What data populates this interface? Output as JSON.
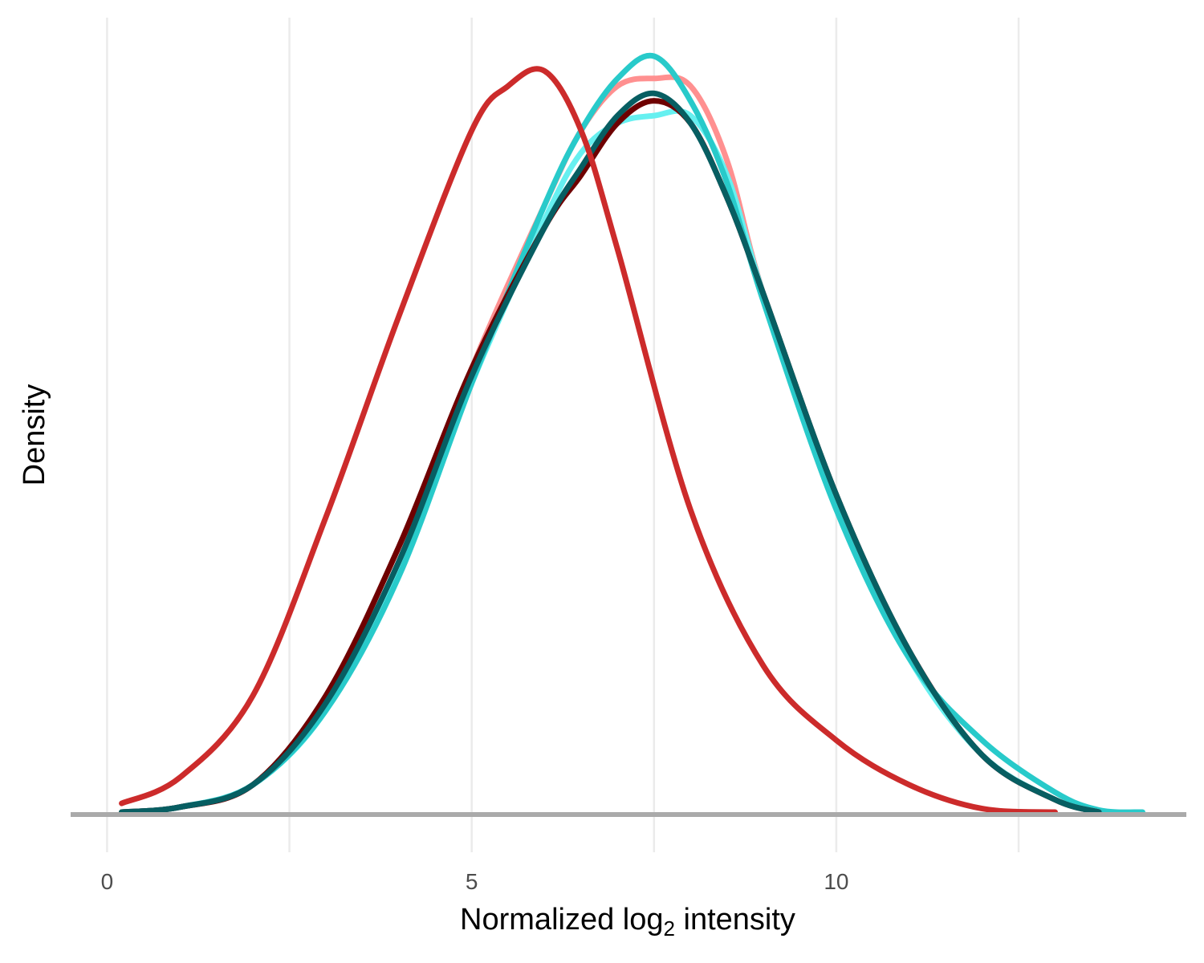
{
  "chart_data": {
    "type": "line",
    "xlabel_main": "Normalized log",
    "xlabel_sub": "2",
    "xlabel_tail": " intensity",
    "ylabel": "Density",
    "xlim": [
      -0.5,
      14.8
    ],
    "ylim": [
      0,
      1.0
    ],
    "x_ticks": [
      {
        "value": 0,
        "label": "0"
      },
      {
        "value": 5,
        "label": "5"
      },
      {
        "value": 10,
        "label": "10"
      }
    ],
    "x_minor_grid": [
      2.5,
      7.5,
      12.5
    ],
    "grid": "vertical-only",
    "legend": "none",
    "series": [
      {
        "color": "#ff9090",
        "x": [
          0.2,
          1,
          2,
          3,
          4,
          5,
          6,
          6.5,
          7,
          7.5,
          8,
          8.5,
          9,
          10,
          11,
          12,
          13,
          13.6
        ],
        "y": [
          0.003,
          0.01,
          0.04,
          0.15,
          0.34,
          0.6,
          0.82,
          0.92,
          0.98,
          0.99,
          0.98,
          0.88,
          0.7,
          0.42,
          0.22,
          0.08,
          0.02,
          0.003
        ]
      },
      {
        "color": "#66f0f0",
        "x": [
          0.2,
          1,
          2,
          3,
          4,
          5,
          6,
          6.5,
          7,
          7.5,
          8,
          8.5,
          9,
          10,
          11,
          12,
          13,
          13.6
        ],
        "y": [
          0.003,
          0.01,
          0.04,
          0.14,
          0.33,
          0.58,
          0.8,
          0.89,
          0.93,
          0.94,
          0.94,
          0.86,
          0.7,
          0.42,
          0.21,
          0.08,
          0.02,
          0.003
        ]
      },
      {
        "color": "#28caca",
        "x": [
          0.2,
          1,
          2,
          3,
          4,
          5,
          6,
          6.5,
          7,
          7.5,
          8,
          8.5,
          9,
          10,
          11,
          12,
          13,
          13.6,
          14.2
        ],
        "y": [
          0.003,
          0.01,
          0.04,
          0.14,
          0.32,
          0.58,
          0.82,
          0.92,
          0.99,
          1.02,
          0.96,
          0.85,
          0.69,
          0.41,
          0.21,
          0.1,
          0.03,
          0.006,
          0.002
        ]
      },
      {
        "color": "#6e0000",
        "x": [
          0.2,
          1,
          2,
          3,
          4,
          5,
          6,
          6.5,
          7,
          7.5,
          8,
          8.5,
          9,
          10,
          11,
          12,
          13,
          13.6
        ],
        "y": [
          0.003,
          0.01,
          0.04,
          0.16,
          0.36,
          0.6,
          0.79,
          0.86,
          0.93,
          0.96,
          0.93,
          0.83,
          0.7,
          0.43,
          0.22,
          0.08,
          0.02,
          0.003
        ]
      },
      {
        "color": "#075e62",
        "x": [
          0.2,
          1,
          2,
          3,
          4,
          5,
          6,
          6.5,
          7,
          7.5,
          8,
          8.5,
          9,
          10,
          11,
          12,
          13,
          13.6
        ],
        "y": [
          0.003,
          0.01,
          0.04,
          0.15,
          0.34,
          0.59,
          0.79,
          0.87,
          0.94,
          0.97,
          0.93,
          0.83,
          0.7,
          0.43,
          0.22,
          0.08,
          0.02,
          0.003
        ]
      },
      {
        "color": "#cc2b2b",
        "x": [
          0.2,
          1,
          2,
          3,
          4,
          5,
          5.5,
          6,
          6.5,
          7,
          8,
          9,
          10,
          11,
          12,
          13
        ],
        "y": [
          0.015,
          0.05,
          0.16,
          0.4,
          0.67,
          0.92,
          0.98,
          1.0,
          0.92,
          0.76,
          0.41,
          0.2,
          0.1,
          0.04,
          0.008,
          0.001
        ]
      }
    ]
  }
}
